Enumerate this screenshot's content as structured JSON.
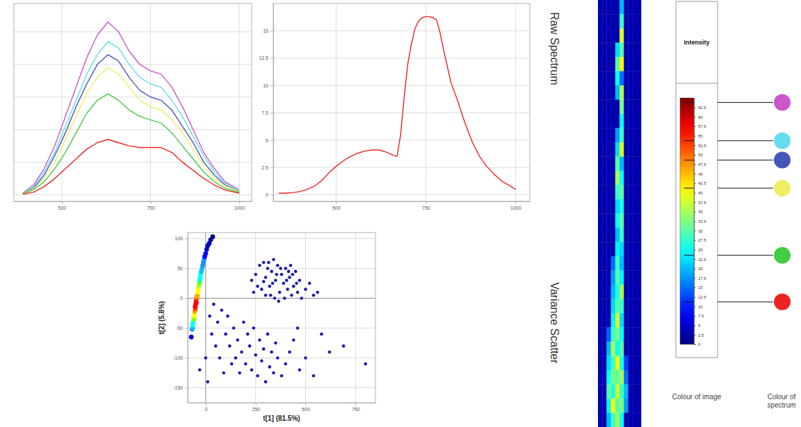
{
  "chart_data": [
    {
      "type": "line",
      "x": [
        390,
        420,
        450,
        480,
        510,
        540,
        570,
        600,
        630,
        660,
        690,
        720,
        750,
        780,
        810,
        840,
        870,
        900,
        930,
        960,
        1000
      ],
      "series": [
        {
          "color": "#cc55cc",
          "values": [
            0.5,
            3,
            8,
            15,
            24,
            33,
            42,
            49,
            53,
            50,
            44,
            40,
            38,
            37,
            33,
            27,
            20,
            13,
            8,
            4,
            1.5
          ]
        },
        {
          "color": "#66ddee",
          "values": [
            0.5,
            2.5,
            7,
            13,
            21,
            29,
            37,
            43,
            47,
            45,
            40,
            36,
            34,
            33,
            29,
            24,
            18,
            12,
            7,
            3.5,
            1.2
          ]
        },
        {
          "color": "#4455bb",
          "values": [
            0.5,
            2,
            6,
            12,
            19,
            27,
            34,
            40,
            43,
            41,
            36,
            32,
            30,
            29,
            26,
            21,
            16,
            10,
            6,
            3,
            1
          ]
        },
        {
          "color": "#eeee66",
          "values": [
            0.4,
            1.8,
            5,
            10,
            17,
            24,
            31,
            36,
            39,
            37,
            33,
            29,
            27,
            26,
            23,
            19,
            14,
            9,
            5,
            2.7,
            1
          ]
        },
        {
          "color": "#44cc44",
          "values": [
            0.3,
            1.5,
            4,
            8,
            13,
            19,
            25,
            29,
            31,
            29,
            26,
            24,
            23,
            22,
            19,
            15,
            11,
            7,
            4,
            2,
            0.8
          ]
        },
        {
          "color": "#ee2222",
          "values": [
            0.2,
            0.8,
            2.5,
            5,
            8,
            11,
            14,
            16,
            17,
            16,
            15,
            14.5,
            14.5,
            14.5,
            13,
            10,
            7.5,
            5,
            3,
            1.5,
            0.5
          ]
        }
      ],
      "xlim": [
        365,
        1035
      ],
      "ylim": [
        -2,
        58.7
      ],
      "xticks": [
        500,
        750,
        1000
      ],
      "yticks": [
        0,
        10,
        20,
        30,
        40,
        50
      ],
      "grid": true,
      "tick_labels": "x"
    },
    {
      "type": "line",
      "x": [
        340,
        360,
        380,
        400,
        420,
        440,
        460,
        480,
        500,
        520,
        540,
        560,
        580,
        600,
        620,
        640,
        660,
        670,
        680,
        690,
        700,
        710,
        720,
        730,
        740,
        750,
        760,
        770,
        780,
        790,
        800,
        820,
        840,
        860,
        880,
        900,
        920,
        940,
        960,
        980,
        1000
      ],
      "series": [
        {
          "color": "#ee2222",
          "values": [
            0.15,
            0.15,
            0.2,
            0.3,
            0.5,
            0.8,
            1.3,
            2,
            2.6,
            3.1,
            3.5,
            3.8,
            4,
            4.1,
            4.1,
            3.9,
            3.6,
            3.5,
            5.5,
            9,
            12,
            13.8,
            15.2,
            15.9,
            16.2,
            16.3,
            16.3,
            16.2,
            16,
            14.8,
            13.2,
            10.3,
            8.5,
            6.5,
            4.8,
            3.5,
            2.6,
            1.9,
            1.3,
            0.9,
            0.5
          ]
        }
      ],
      "xlim": [
        325,
        1040
      ],
      "ylim": [
        -0.6,
        17.5
      ],
      "xticks": [
        500,
        750,
        1000
      ],
      "yticks": [
        0,
        2.5,
        5,
        7.5,
        10,
        12.5,
        15
      ],
      "grid": true
    },
    {
      "type": "scatter",
      "x_label": "t[1] (81.5%)",
      "y_label": "t[2] (5.8%)",
      "xlim": [
        -90,
        850
      ],
      "ylim": [
        -175,
        110
      ],
      "xticks": [
        0,
        250,
        500,
        750
      ],
      "yticks": [
        -150,
        -100,
        -50,
        0,
        50,
        100
      ],
      "grid": true,
      "series": [
        {
          "color": "#1a1aa8",
          "x": [
            250,
            270,
            290,
            300,
            310,
            320,
            330,
            340,
            350,
            360,
            370,
            380,
            390,
            400,
            410,
            420,
            430,
            440,
            450,
            460,
            470,
            480,
            500,
            520,
            540,
            560,
            280,
            300,
            260,
            240,
            230,
            345,
            365,
            395,
            425,
            315,
            335,
            355,
            375,
            405,
            415,
            435,
            455,
            290,
            325,
            100,
            120,
            140,
            150,
            160,
            180,
            190,
            200,
            210,
            220,
            230,
            240,
            250,
            260,
            270,
            280,
            290,
            300,
            310,
            320,
            330,
            340,
            350,
            360,
            380,
            400,
            130,
            170,
            110,
            80,
            60,
            40,
            50,
            70,
            30,
            20,
            90,
            420,
            440,
            460,
            580,
            620,
            690,
            800,
            500,
            470,
            540,
            -30,
            0,
            10
          ],
          "values": [
            40,
            55,
            60,
            35,
            50,
            20,
            45,
            65,
            30,
            55,
            10,
            40,
            25,
            50,
            15,
            35,
            5,
            20,
            45,
            10,
            30,
            0,
            15,
            25,
            5,
            10,
            15,
            5,
            20,
            10,
            30,
            0,
            -5,
            0,
            55,
            60,
            25,
            40,
            50,
            30,
            45,
            40,
            25,
            28,
            5,
            -60,
            -80,
            -50,
            -100,
            -70,
            -90,
            -40,
            -110,
            -60,
            -80,
            -120,
            -50,
            -95,
            -130,
            -70,
            -105,
            -85,
            -140,
            -60,
            -115,
            -90,
            -125,
            -75,
            -100,
            -130,
            -110,
            -110,
            -125,
            -30,
            -20,
            -40,
            -10,
            -80,
            -100,
            -60,
            -30,
            -125,
            -90,
            -70,
            -50,
            -60,
            -90,
            -80,
            -110,
            -100,
            -120,
            -130,
            -120,
            -100,
            -140
          ]
        },
        {
          "colors": [
            "#0000cd",
            "#1e90ff",
            "#00bfff",
            "#00ffff",
            "#7fff00",
            "#ffff00",
            "#ffa500",
            "#ff4500",
            "#ff0000",
            "#ff0000",
            "#ff4500",
            "#ffa500",
            "#ffff00",
            "#ffff00",
            "#adff2f",
            "#7fff00",
            "#00ff7f",
            "#00ffff",
            "#00ffff",
            "#00bfff",
            "#00bfff",
            "#1e90ff",
            "#1e90ff",
            "#1e90ff",
            "#0000ff",
            "#0000ff",
            "#0000cd",
            "#0000cd",
            "#0000cd",
            "#00008b",
            "#00008b",
            "#00ffff",
            "#ffff00",
            "#ff0000",
            "#ff0000",
            "#ffa500",
            "#ffff00",
            "#00ffff"
          ],
          "x": [
            -72,
            -68,
            -65,
            -62,
            -60,
            -57,
            -55,
            -52,
            -50,
            -48,
            -45,
            -42,
            -40,
            -37,
            -35,
            -32,
            -30,
            -27,
            -25,
            -22,
            -18,
            -15,
            -12,
            -8,
            -5,
            0,
            5,
            10,
            18,
            25,
            35,
            -66,
            -58,
            -53,
            -47,
            -43,
            -38,
            -28
          ],
          "values": [
            -65,
            -52,
            -50,
            -40,
            -35,
            -28,
            -22,
            -18,
            -10,
            -5,
            0,
            5,
            10,
            15,
            20,
            25,
            30,
            35,
            40,
            45,
            50,
            55,
            60,
            65,
            70,
            75,
            82,
            88,
            92,
            98,
            103,
            -45,
            -30,
            -14,
            -8,
            3,
            12,
            32
          ]
        }
      ]
    },
    {
      "type": "heatmap",
      "tick_labels": false,
      "cells": [
        [
          3,
          3,
          3,
          3,
          3,
          20,
          3,
          3,
          3,
          3
        ],
        [
          3,
          3,
          3,
          3,
          3,
          28,
          3,
          3,
          3,
          3
        ],
        [
          3,
          3,
          3,
          3,
          3,
          38,
          3,
          3,
          3,
          3
        ],
        [
          3,
          3,
          3,
          3,
          22,
          30,
          3,
          3,
          3,
          3
        ],
        [
          3,
          3,
          3,
          3,
          30,
          40,
          3,
          3,
          3,
          3
        ],
        [
          3,
          3,
          3,
          3,
          25,
          15,
          3,
          3,
          3,
          3
        ],
        [
          3,
          3,
          3,
          3,
          20,
          35,
          3,
          3,
          3,
          3
        ],
        [
          3,
          3,
          3,
          3,
          3,
          32,
          3,
          3,
          3,
          3
        ],
        [
          3,
          3,
          3,
          3,
          3,
          25,
          3,
          3,
          3,
          3
        ],
        [
          3,
          3,
          3,
          3,
          18,
          28,
          3,
          3,
          3,
          3
        ],
        [
          3,
          3,
          3,
          3,
          22,
          38,
          3,
          3,
          3,
          3
        ],
        [
          3,
          3,
          3,
          3,
          30,
          20,
          3,
          3,
          3,
          3
        ],
        [
          3,
          3,
          3,
          3,
          35,
          25,
          3,
          3,
          3,
          3
        ],
        [
          3,
          3,
          3,
          3,
          28,
          30,
          3,
          3,
          3,
          3
        ],
        [
          3,
          3,
          3,
          3,
          22,
          26,
          3,
          3,
          3,
          3
        ],
        [
          3,
          3,
          3,
          3,
          25,
          30,
          3,
          3,
          3,
          3
        ],
        [
          3,
          3,
          3,
          3,
          20,
          28,
          3,
          3,
          3,
          3
        ],
        [
          3,
          3,
          3,
          3,
          24,
          22,
          3,
          3,
          3,
          3
        ],
        [
          3,
          3,
          3,
          15,
          28,
          20,
          3,
          3,
          3,
          3
        ],
        [
          3,
          3,
          3,
          18,
          30,
          24,
          3,
          3,
          3,
          3
        ],
        [
          3,
          3,
          3,
          20,
          26,
          35,
          3,
          3,
          3,
          3
        ],
        [
          3,
          3,
          3,
          22,
          30,
          28,
          3,
          3,
          3,
          3
        ],
        [
          3,
          3,
          3,
          24,
          38,
          22,
          3,
          3,
          3,
          3
        ],
        [
          3,
          3,
          14,
          28,
          32,
          25,
          3,
          3,
          3,
          3
        ],
        [
          3,
          3,
          20,
          35,
          25,
          30,
          3,
          3,
          3,
          3
        ],
        [
          3,
          3,
          22,
          28,
          40,
          26,
          12,
          3,
          3,
          3
        ],
        [
          3,
          3,
          25,
          32,
          30,
          35,
          15,
          3,
          3,
          3
        ],
        [
          3,
          3,
          30,
          26,
          38,
          28,
          20,
          3,
          3,
          3
        ],
        [
          3,
          3,
          24,
          40,
          30,
          32,
          18,
          3,
          3,
          3
        ],
        [
          3,
          3,
          20,
          28,
          35,
          25,
          3,
          3,
          3,
          3
        ]
      ],
      "colorbar": {
        "title": "Intensity",
        "range": [
          0,
          65
        ],
        "ticks": [
          0,
          2.5,
          5,
          7.5,
          10,
          12.5,
          15,
          17.5,
          20,
          22.5,
          25,
          27.5,
          30,
          32.5,
          35,
          37.5,
          40,
          42.5,
          45,
          47.5,
          50,
          52.5,
          55,
          57.5,
          60,
          62.5
        ],
        "markers": [
          {
            "value": 63.8,
            "color": "#cc55cc"
          },
          {
            "value": 53.7,
            "color": "#66ddee"
          },
          {
            "value": 48.6,
            "color": "#4455bb"
          },
          {
            "value": 41.2,
            "color": "#eeee66"
          },
          {
            "value": 23.5,
            "color": "#44cc44"
          },
          {
            "value": 11.2,
            "color": "#ee2222"
          }
        ],
        "headings": [
          "Colour of image",
          "Colour of spectrum"
        ]
      }
    }
  ],
  "row_labels": [
    "Raw Spectrum",
    "Variance Scatter"
  ]
}
